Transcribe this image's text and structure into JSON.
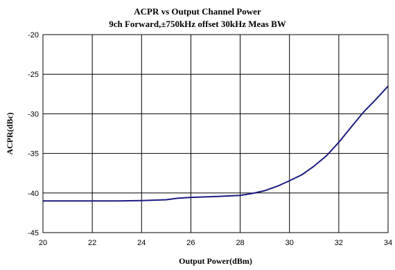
{
  "chart_data": {
    "type": "line",
    "title": "ACPR vs Output Channel Power",
    "subtitle": "9ch Forward,±750kHz offset 30kHz Meas BW",
    "xlabel": "Output Power(dBm)",
    "ylabel": "ACPR(dBc)",
    "xlim": [
      20,
      34
    ],
    "ylim": [
      -45,
      -20
    ],
    "x_ticks": [
      "20",
      "22",
      "24",
      "26",
      "28",
      "30",
      "32",
      "34"
    ],
    "y_ticks": [
      "-20",
      "-25",
      "-30",
      "-35",
      "-40",
      "-45"
    ],
    "grid": true,
    "line_color": "#1a1a80",
    "series": [
      {
        "x": [
          20,
          21,
          22,
          23,
          24,
          25,
          25.5,
          26,
          27,
          28,
          28.5,
          29,
          29.5,
          30,
          30.5,
          31,
          31.5,
          32,
          32.5,
          33,
          33.5,
          34
        ],
        "y": [
          -41.0,
          -41.0,
          -41.0,
          -41.0,
          -40.95,
          -40.85,
          -40.65,
          -40.55,
          -40.45,
          -40.3,
          -40.05,
          -39.7,
          -39.15,
          -38.45,
          -37.7,
          -36.6,
          -35.3,
          -33.6,
          -31.7,
          -29.8,
          -28.2,
          -26.5
        ]
      }
    ]
  }
}
